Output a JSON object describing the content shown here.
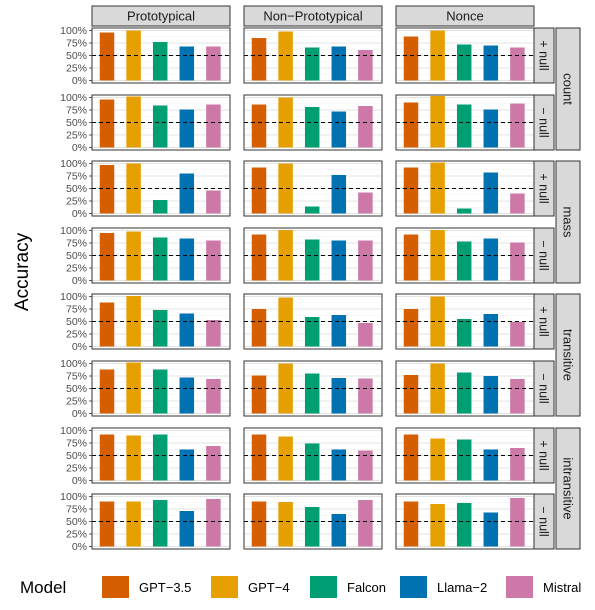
{
  "chart_data": {
    "type": "bar",
    "ylabel": "Accuracy",
    "ylim": [
      0,
      100
    ],
    "yticks": [
      "0%",
      "25%",
      "50%",
      "75%",
      "100%"
    ],
    "reference_line": 50,
    "columns": [
      "Prototypical",
      "Non−Prototypical",
      "Nonce"
    ],
    "groups": [
      {
        "label": "count",
        "rows": [
          0,
          1
        ]
      },
      {
        "label": "mass",
        "rows": [
          2,
          3
        ]
      },
      {
        "label": "transitive",
        "rows": [
          4,
          5
        ]
      },
      {
        "label": "intransitive",
        "rows": [
          6,
          7
        ]
      }
    ],
    "row_labels": [
      "+ null",
      "− null",
      "+ null",
      "− null",
      "+ null",
      "− null",
      "+ null",
      "− null"
    ],
    "legend": {
      "title": "Model",
      "position": "bottom",
      "items": [
        {
          "name": "GPT−3.5",
          "color": "#D55E00"
        },
        {
          "name": "GPT−4",
          "color": "#E69F00"
        },
        {
          "name": "Falcon",
          "color": "#009E73"
        },
        {
          "name": "Llama−2",
          "color": "#0072B2"
        },
        {
          "name": "Mistral",
          "color": "#CC79A7"
        }
      ]
    },
    "values": [
      [
        [
          96,
          100,
          77,
          68,
          68
        ],
        [
          85,
          98,
          66,
          68,
          61
        ],
        [
          88,
          100,
          72,
          70,
          66
        ]
      ],
      [
        [
          96,
          102,
          84,
          76,
          86
        ],
        [
          86,
          100,
          81,
          72,
          83
        ],
        [
          90,
          103,
          86,
          76,
          88
        ]
      ],
      [
        [
          97,
          100,
          27,
          80,
          46
        ],
        [
          92,
          100,
          14,
          77,
          42
        ],
        [
          92,
          102,
          10,
          82,
          40
        ]
      ],
      [
        [
          95,
          98,
          86,
          84,
          80
        ],
        [
          92,
          101,
          82,
          80,
          80
        ],
        [
          92,
          101,
          78,
          84,
          76
        ]
      ],
      [
        [
          88,
          101,
          73,
          66,
          53
        ],
        [
          75,
          98,
          59,
          63,
          47
        ],
        [
          75,
          100,
          55,
          65,
          49
        ]
      ],
      [
        [
          88,
          102,
          88,
          72,
          69
        ],
        [
          76,
          100,
          80,
          71,
          70
        ],
        [
          77,
          100,
          82,
          75,
          69
        ]
      ],
      [
        [
          92,
          90,
          92,
          62,
          69
        ],
        [
          92,
          88,
          74,
          62,
          60
        ],
        [
          92,
          84,
          82,
          62,
          65
        ]
      ],
      [
        [
          90,
          90,
          93,
          71,
          95
        ],
        [
          90,
          89,
          79,
          65,
          93
        ],
        [
          90,
          85,
          87,
          68,
          97
        ]
      ]
    ]
  }
}
